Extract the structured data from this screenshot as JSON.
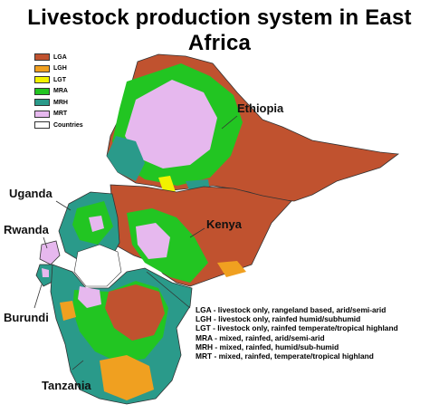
{
  "title": "Livestock production system in East Africa",
  "legend": {
    "items": [
      {
        "code": "LGA",
        "color": "#c0522f"
      },
      {
        "code": "LGH",
        "color": "#f0a020"
      },
      {
        "code": "LGT",
        "color": "#f2f200"
      },
      {
        "code": "MRA",
        "color": "#22c522"
      },
      {
        "code": "MRH",
        "color": "#2a9a8a"
      },
      {
        "code": "MRT",
        "color": "#e6b8ee"
      }
    ],
    "countries_label": "Countries"
  },
  "countries": {
    "ethiopia": "Ethiopia",
    "kenya": "Kenya",
    "uganda": "Uganda",
    "rwanda": "Rwanda",
    "burundi": "Burundi",
    "tanzania": "Tanzania"
  },
  "definitions": [
    "LGA - livestock only, rangeland based, arid/semi-arid",
    "LGH - livestock only, rainfed humid/subhumid",
    "LGT - livestock only, rainfed temperate/tropical highland",
    "MRA - mixed, rainfed, arid/semi-arid",
    "MRH - mixed, rainfed, humid/sub-humid",
    "MRT - mixed, rainfed, temperate/tropical highland"
  ]
}
